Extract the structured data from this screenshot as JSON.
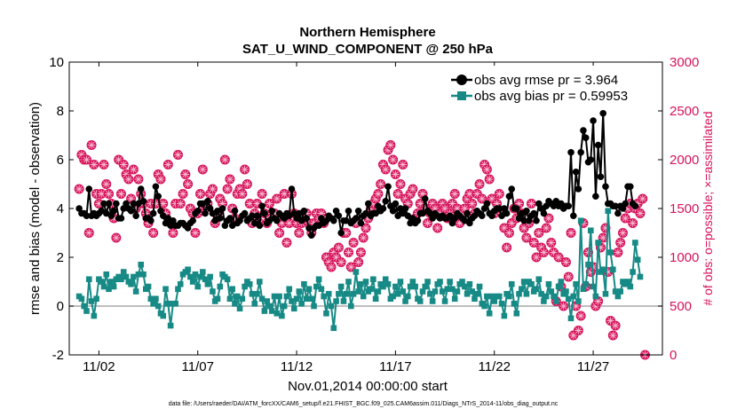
{
  "chart_data": {
    "type": "line",
    "title": "Northern Hemisphere",
    "subtitle": "SAT_U_WIND_COMPONENT @ 250 hPa",
    "xlabel": "Nov.01,2014 00:00:00 start",
    "ylabel": "rmse and bias (model - observation)",
    "y2label": "# of obs: o=possible; ×=assimilated",
    "footer": "data file: /Users/raeder/DAI/ATM_forcXX/CAM6_setup/f.e21.FHIST_BGC.f09_025.CAM6assim.011/Diags_NTrS_2014-11/obs_diag_output.nc",
    "ylim": [
      -2,
      10
    ],
    "yticks": [
      "-2",
      "0",
      "2",
      "4",
      "6",
      "8",
      "10"
    ],
    "y2lim": [
      0,
      3000
    ],
    "y2ticks": [
      "0",
      "500",
      "1000",
      "1500",
      "2000",
      "2500",
      "3000"
    ],
    "xlim": [
      0.5,
      30.5
    ],
    "xticks": [
      {
        "day": 2,
        "label": "11/02"
      },
      {
        "day": 7,
        "label": "11/07"
      },
      {
        "day": 12,
        "label": "11/12"
      },
      {
        "day": 17,
        "label": "11/17"
      },
      {
        "day": 22,
        "label": "11/22"
      },
      {
        "day": 27,
        "label": "11/27"
      }
    ],
    "series": [
      {
        "name": "obs avg rmse pr = 3.964",
        "color": "#000000",
        "values": [
          4.0,
          3.8,
          3.8,
          3.7,
          4.8,
          3.7,
          3.8,
          3.7,
          3.8,
          3.9,
          4.2,
          3.8,
          4.2,
          3.7,
          3.9,
          4.2,
          3.6,
          3.6,
          4.0,
          4.2,
          4.0,
          3.9,
          4.2,
          3.7,
          4.2,
          4.8,
          4.3,
          3.6,
          3.6,
          3.5,
          3.8,
          4.9,
          4.5,
          3.9,
          3.7,
          3.4,
          3.6,
          3.3,
          3.5,
          3.3,
          3.3,
          3.4,
          3.4,
          3.3,
          3.2,
          3.4,
          3.5,
          3.8,
          3.9,
          4.2,
          4.2,
          3.8,
          4.3,
          4.0,
          3.8,
          3.5,
          3.9,
          3.6,
          4.0,
          3.3,
          3.5,
          3.6,
          3.3,
          3.9,
          3.4,
          3.5,
          3.7,
          3.8,
          3.5,
          3.6,
          3.7,
          3.4,
          3.7,
          3.3,
          4.1,
          3.8,
          3.4,
          3.5,
          3.9,
          3.6,
          3.5,
          3.8,
          3.7,
          3.6,
          3.8,
          3.7,
          4.8,
          3.8,
          3.6,
          3.8,
          3.5,
          3.9,
          3.6,
          3.2,
          2.9,
          3.2,
          3.3,
          3.3,
          3.6,
          3.4,
          3.5,
          3.7,
          3.6,
          3.5,
          3.9,
          3.7,
          3.0,
          3.5,
          3.5,
          3.9,
          3.4,
          3.5,
          3.6,
          3.9,
          3.4,
          3.7,
          3.8,
          4.2,
          3.7,
          3.8,
          3.8,
          4.1,
          3.9,
          4.0,
          4.3,
          4.9,
          4.1,
          3.9,
          4.2,
          3.7,
          4.0,
          3.8,
          4.0,
          3.7,
          3.4,
          3.6,
          3.4,
          3.5,
          3.8,
          3.8,
          4.4,
          3.9,
          3.8,
          3.6,
          3.8,
          3.7,
          3.6,
          3.7,
          3.6,
          3.6,
          3.7,
          3.4,
          3.6,
          3.8,
          3.7,
          3.6,
          3.5,
          3.8,
          3.4,
          3.6,
          3.7,
          3.9,
          3.8,
          3.7,
          4.0,
          4.2,
          3.8,
          3.7,
          3.9,
          4.0,
          4.0,
          3.7,
          4.0,
          3.8,
          4.5,
          4.8,
          4.0,
          4.0,
          3.6,
          3.8,
          3.5,
          3.9,
          3.5,
          3.7,
          3.8,
          3.5,
          4.2,
          4.0,
          3.8,
          4.1,
          4.3,
          4.2,
          4.1,
          4.3,
          4.1,
          4.2,
          4.0,
          4.1,
          4.1,
          6.3,
          3.7,
          5.5,
          4.8,
          6.3,
          7.2,
          6.9,
          5.9,
          6.0,
          7.6,
          4.5,
          6.6,
          5.3,
          7.9,
          4.9,
          4.2,
          4.2,
          4.1,
          4.1,
          3.8,
          4.1,
          4.0,
          4.2,
          4.9,
          4.9,
          4.2,
          4.1
        ]
      },
      {
        "name": "obs avg bias pr = 0.59953",
        "color": "#178a86",
        "values": [
          0.4,
          0.3,
          0.0,
          -0.2,
          1.1,
          0.2,
          -0.4,
          0.3,
          1.1,
          1.0,
          0.8,
          1.3,
          0.7,
          1.0,
          0.8,
          1.1,
          1.2,
          1.1,
          1.4,
          1.2,
          1.0,
          0.9,
          1.2,
          0.6,
          1.3,
          1.7,
          1.3,
          0.7,
          0.8,
          0.3,
          0.1,
          0.3,
          0.0,
          -0.3,
          -0.4,
          0.7,
          0.1,
          -0.8,
          0.1,
          0.1,
          0.7,
          0.9,
          1.3,
          1.4,
          1.5,
          1.2,
          1.0,
          1.3,
          0.8,
          1.2,
          1.4,
          1.1,
          0.9,
          1.2,
          0.6,
          0.2,
          0.3,
          0.8,
          1.3,
          1.2,
          1.1,
          0.3,
          0.7,
          0.1,
          0.4,
          -0.1,
          0.3,
          0.8,
          1.0,
          0.9,
          0.5,
          0.1,
          0.5,
          1.0,
          0.3,
          -0.2,
          0.2,
          0.0,
          -0.2,
          0.4,
          -0.3,
          0.4,
          -0.4,
          0.0,
          0.4,
          0.7,
          0.2,
          -0.1,
          0.3,
          0.6,
          0.1,
          0.9,
          0.3,
          0.7,
          0.3,
          0.0,
          0.8,
          1.1,
          0.7,
          0.4,
          -0.3,
          0.5,
          0.0,
          -0.9,
          0.2,
          0.5,
          0.8,
          0.2,
          0.5,
          1.0,
          0.0,
          0.5,
          1.4,
          0.6,
          0.9,
          0.4,
          1.0,
          0.6,
          0.7,
          1.1,
          0.3,
          0.6,
          0.9,
          0.8,
          1.1,
          0.9,
          0.3,
          0.4,
          0.8,
          0.5,
          1.0,
          0.6,
          0.2,
          0.4,
          0.8,
          1.0,
          0.8,
          0.3,
          0.2,
          0.6,
          0.8,
          1.0,
          0.5,
          0.2,
          0.6,
          0.9,
          1.0,
          0.6,
          0.2,
          0.7,
          1.0,
          0.7,
          0.3,
          0.6,
          0.9,
          1.0,
          0.8,
          0.5,
          0.9,
          0.6,
          0.3,
          0.5,
          0.8,
          0.1,
          0.0,
          0.4,
          -0.3,
          0.4,
          0.2,
          0.4,
          0.4,
          0.1,
          -0.4,
          0.5,
          0.4,
          0.9,
          0.1,
          -0.3,
          0.5,
          0.7,
          1.0,
          0.5,
          1.0,
          0.9,
          0.6,
          0.7,
          1.1,
          0.5,
          0.2,
          0.4,
          0.9,
          0.6,
          0.4,
          0.2,
          0.8,
          1.0,
          0.5,
          0.6,
          0.3,
          -0.5,
          0.4,
          0.9,
          0.2,
          3.5,
          0.7,
          0.9,
          1.7,
          3.1,
          0.8,
          0.4,
          2.6,
          1.4,
          1.5,
          0.5,
          3.9,
          2.2,
          1.5,
          0.6,
          0.4,
          0.6,
          1.0,
          0.9,
          1.0,
          0.8,
          1.4,
          2.6,
          1.9,
          1.2
        ]
      }
    ],
    "obs_possible": [
      1700,
      2050,
      2000,
      2000,
      1250,
      2150,
      1950,
      1650,
      1550,
      1650,
      1950,
      1750,
      1650,
      1550,
      1400,
      1200,
      2000,
      1650,
      1950,
      1850,
      1800,
      1600,
      1900,
      1500,
      1800,
      1650,
      1550,
      1450,
      1350,
      1550,
      1250,
      1550,
      1850,
      1800,
      1550,
      1450,
      1950,
      1350,
      1250,
      1550,
      2050,
      1550,
      1650,
      1850,
      1750,
      1500,
      1450,
      1250,
      1450,
      1650,
      1900,
      1500,
      1550,
      1650,
      1700,
      1350,
      1450,
      1600,
      1550,
      2000,
      1700,
      1800,
      1500,
      1400,
      1650,
      1700,
      1650,
      1900,
      1750,
      1550,
      1350,
      1450,
      1550,
      1350,
      1650,
      1450,
      1350,
      1550,
      1450,
      1450,
      1600,
      1250,
      1350,
      1650,
      1150,
      1350,
      1650,
      1450,
      1350,
      1250,
      1350,
      1450,
      1450,
      1350,
      1250,
      1350,
      1450,
      1400,
      1450,
      1350,
      1000,
      950,
      900,
      1050,
      1000,
      1100,
      950,
      1250,
      1250,
      1050,
      900,
      1150,
      1350,
      950,
      1050,
      1200,
      1300,
      1400,
      1500,
      1550,
      1600,
      1650,
      1750,
      1950,
      1900,
      2100,
      2150,
      2000,
      1850,
      1650,
      1750,
      1950,
      1600,
      1550,
      1650,
      1700,
      1400,
      1450,
      1550,
      1650,
      1500,
      1350,
      1450,
      1550,
      1500,
      1300,
      1450,
      1550,
      1500,
      1400,
      1450,
      1550,
      1650,
      1500,
      1350,
      1450,
      1500,
      1600,
      1650,
      1550,
      1450,
      1650,
      1750,
      1600,
      1950,
      1900,
      1800,
      1600,
      1450,
      1550,
      1650,
      1450,
      1300,
      1100,
      1250,
      1350,
      1500,
      1400,
      1550,
      1450,
      1300,
      1200,
      1350,
      1550,
      1150,
      1000,
      1250,
      1100,
      1050,
      1300,
      1400,
      1150,
      1050,
      550,
      1000,
      700,
      500,
      950,
      800,
      1250,
      200,
      500,
      250,
      400,
      1350,
      700,
      1050,
      850,
      900,
      500,
      550,
      1100,
      1200,
      1300,
      850,
      350,
      200,
      300,
      1050,
      1150,
      1250,
      1400,
      1500,
      1550,
      1350,
      1500,
      1550,
      1450,
      1600,
      0
    ]
  },
  "legend": {
    "rmse_label": "obs avg rmse pr = 3.964",
    "bias_label": "obs avg bias pr = 0.59953"
  },
  "colors": {
    "rmse": "#000000",
    "bias": "#178a86",
    "obs": "#d6135b",
    "zero_line": "#a8a8a8"
  }
}
